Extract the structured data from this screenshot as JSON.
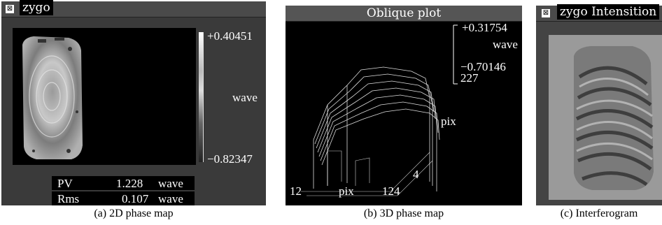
{
  "panel1": {
    "title": "zygo",
    "colorbar": {
      "max": "+0.40451",
      "unit": "wave",
      "min": "−0.82347"
    },
    "stats": [
      {
        "label": "PV",
        "value": "1.228",
        "unit": "wave"
      },
      {
        "label": "Rms",
        "value": "0.107",
        "unit": "wave"
      }
    ],
    "caption": "(a) 2D phase map"
  },
  "panel2": {
    "title": "Oblique plot",
    "colorbar": {
      "max": "+0.31754",
      "unit": "wave",
      "min": "−0.70146"
    },
    "axis_y_top": "227",
    "axis_y_label": "pix",
    "axis_y_bottom": "4",
    "axis_x_left": "12",
    "axis_x_label": "pix",
    "axis_x_right": "124",
    "caption": "(b) 3D phase map"
  },
  "panel3": {
    "title": "zygo Intensition",
    "caption": "(c) Interferogram"
  },
  "colors": {
    "panel_bg": "#3a3a3a",
    "plot_bg": "#000000",
    "titlebar_bg": "#4a4a4a"
  }
}
